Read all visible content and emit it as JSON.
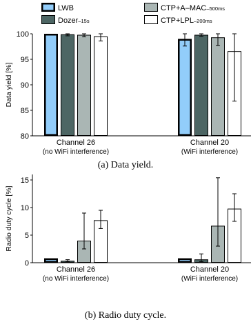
{
  "legend": {
    "placement": "top",
    "items": [
      {
        "name": "LWB",
        "sub": "",
        "color": "#92cdfa",
        "stroke_width": 2.5
      },
      {
        "name": "Dozer",
        "sub": "–15s",
        "color": "#4d6664",
        "stroke_width": 1
      },
      {
        "name": "CTP+A–MAC",
        "sub": "–500ms",
        "color": "#aab6b4",
        "stroke_width": 1
      },
      {
        "name": "CTP+LPL",
        "sub": "–200ms",
        "color": "#ffffff",
        "stroke_width": 1
      }
    ]
  },
  "chart_data": [
    {
      "type": "bar",
      "caption": "(a)  Data yield.",
      "ylabel": "Data yield [%]",
      "ylim": [
        80,
        100
      ],
      "yticks": [
        80,
        85,
        90,
        95,
        100
      ],
      "categories": [
        {
          "line1": "Channel 26",
          "line2": "(no WiFi interference)"
        },
        {
          "line1": "Channel 20",
          "line2": "(WiFi interference)"
        }
      ],
      "series": [
        {
          "name": "LWB",
          "values": [
            100,
            99.0
          ],
          "err_low": [
            0,
            1.4
          ],
          "err_high": [
            0,
            1.0
          ]
        },
        {
          "name": "Dozer",
          "values": [
            99.9,
            99.8
          ],
          "err_low": [
            0.3,
            0.3
          ],
          "err_high": [
            0.2,
            0.2
          ]
        },
        {
          "name": "CTP+A–MAC",
          "values": [
            99.8,
            99.3
          ],
          "err_low": [
            0.4,
            1.6
          ],
          "err_high": [
            0.3,
            0.8
          ]
        },
        {
          "name": "CTP+LPL",
          "values": [
            99.5,
            96.6
          ],
          "err_low": [
            0.9,
            9.8
          ],
          "err_high": [
            0.6,
            3.4
          ]
        }
      ]
    },
    {
      "type": "bar",
      "caption": "(b)  Radio duty cycle.",
      "ylabel": "Radio duty cycle [%]",
      "ylim": [
        0,
        16
      ],
      "yticks": [
        0,
        5,
        10,
        15
      ],
      "categories": [
        {
          "line1": "Channel 26",
          "line2": "(no WiFi interference)"
        },
        {
          "line1": "Channel 20",
          "line2": "(WiFi interference)"
        }
      ],
      "series": [
        {
          "name": "LWB",
          "values": [
            0.8,
            0.8
          ],
          "err_low": [
            0,
            0
          ],
          "err_high": [
            0,
            0
          ]
        },
        {
          "name": "Dozer",
          "values": [
            0.35,
            0.6
          ],
          "err_low": [
            0.2,
            0.4
          ],
          "err_high": [
            0.2,
            1.0
          ]
        },
        {
          "name": "CTP+A–MAC",
          "values": [
            4.0,
            6.7
          ],
          "err_low": [
            1.5,
            3.7
          ],
          "err_high": [
            5.0,
            8.7
          ]
        },
        {
          "name": "CTP+LPL",
          "values": [
            7.7,
            9.8
          ],
          "err_low": [
            1.5,
            2.3
          ],
          "err_high": [
            1.8,
            2.7
          ]
        }
      ]
    }
  ]
}
